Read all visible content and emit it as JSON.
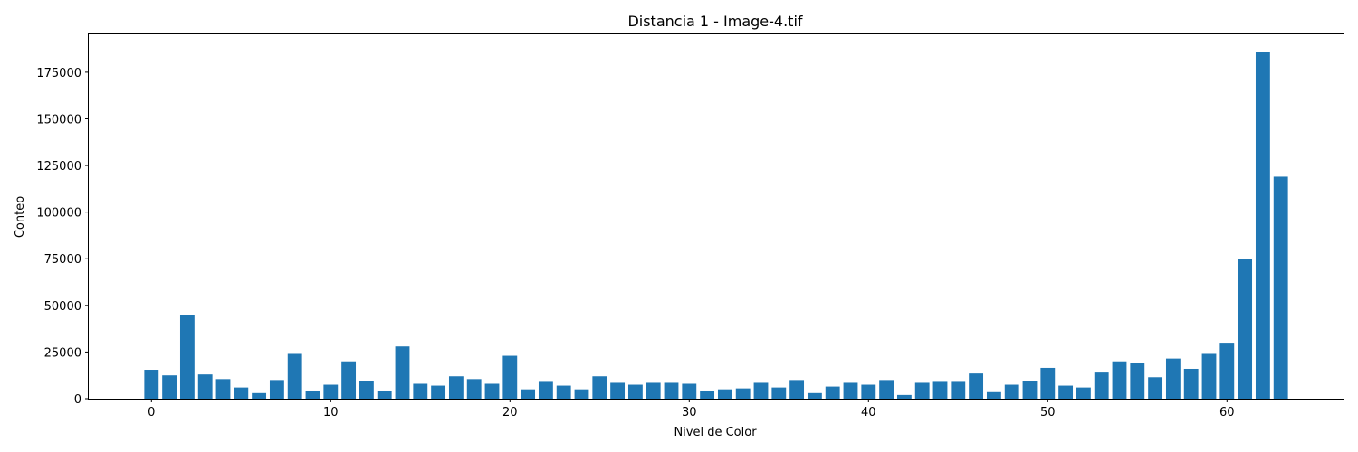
{
  "chart_data": {
    "type": "bar",
    "title": "Distancia 1 - Image-4.tif",
    "xlabel": "Nivel de Color",
    "ylabel": "Conteo",
    "x": [
      0,
      1,
      2,
      3,
      4,
      5,
      6,
      7,
      8,
      9,
      10,
      11,
      12,
      13,
      14,
      15,
      16,
      17,
      18,
      19,
      20,
      21,
      22,
      23,
      24,
      25,
      26,
      27,
      28,
      29,
      30,
      31,
      32,
      33,
      34,
      35,
      36,
      37,
      38,
      39,
      40,
      41,
      42,
      43,
      44,
      45,
      46,
      47,
      48,
      49,
      50,
      51,
      52,
      53,
      54,
      55,
      56,
      57,
      58,
      59,
      60,
      61,
      62,
      63
    ],
    "values": [
      15500,
      12500,
      45000,
      13000,
      10500,
      6000,
      3000,
      10000,
      24000,
      4000,
      7500,
      20000,
      9500,
      4000,
      28000,
      8000,
      7000,
      12000,
      10500,
      8000,
      23000,
      5000,
      9000,
      7000,
      5000,
      12000,
      8500,
      7500,
      8500,
      8500,
      8000,
      4000,
      5000,
      5500,
      8500,
      6000,
      10000,
      3000,
      6500,
      8500,
      7500,
      10000,
      2000,
      8500,
      9000,
      9000,
      13500,
      3500,
      7500,
      9500,
      16500,
      7000,
      6000,
      14000,
      20000,
      19000,
      11500,
      21500,
      16000,
      24000,
      30000,
      75000,
      186000,
      119000
    ],
    "xlim": [
      -3.5,
      66.5
    ],
    "ylim": [
      0,
      195300
    ],
    "xticks": [
      0,
      10,
      20,
      30,
      40,
      50,
      60
    ],
    "yticks": [
      0,
      25000,
      50000,
      75000,
      100000,
      125000,
      150000,
      175000
    ],
    "bar_color": "#1f77b4",
    "grid": false
  }
}
